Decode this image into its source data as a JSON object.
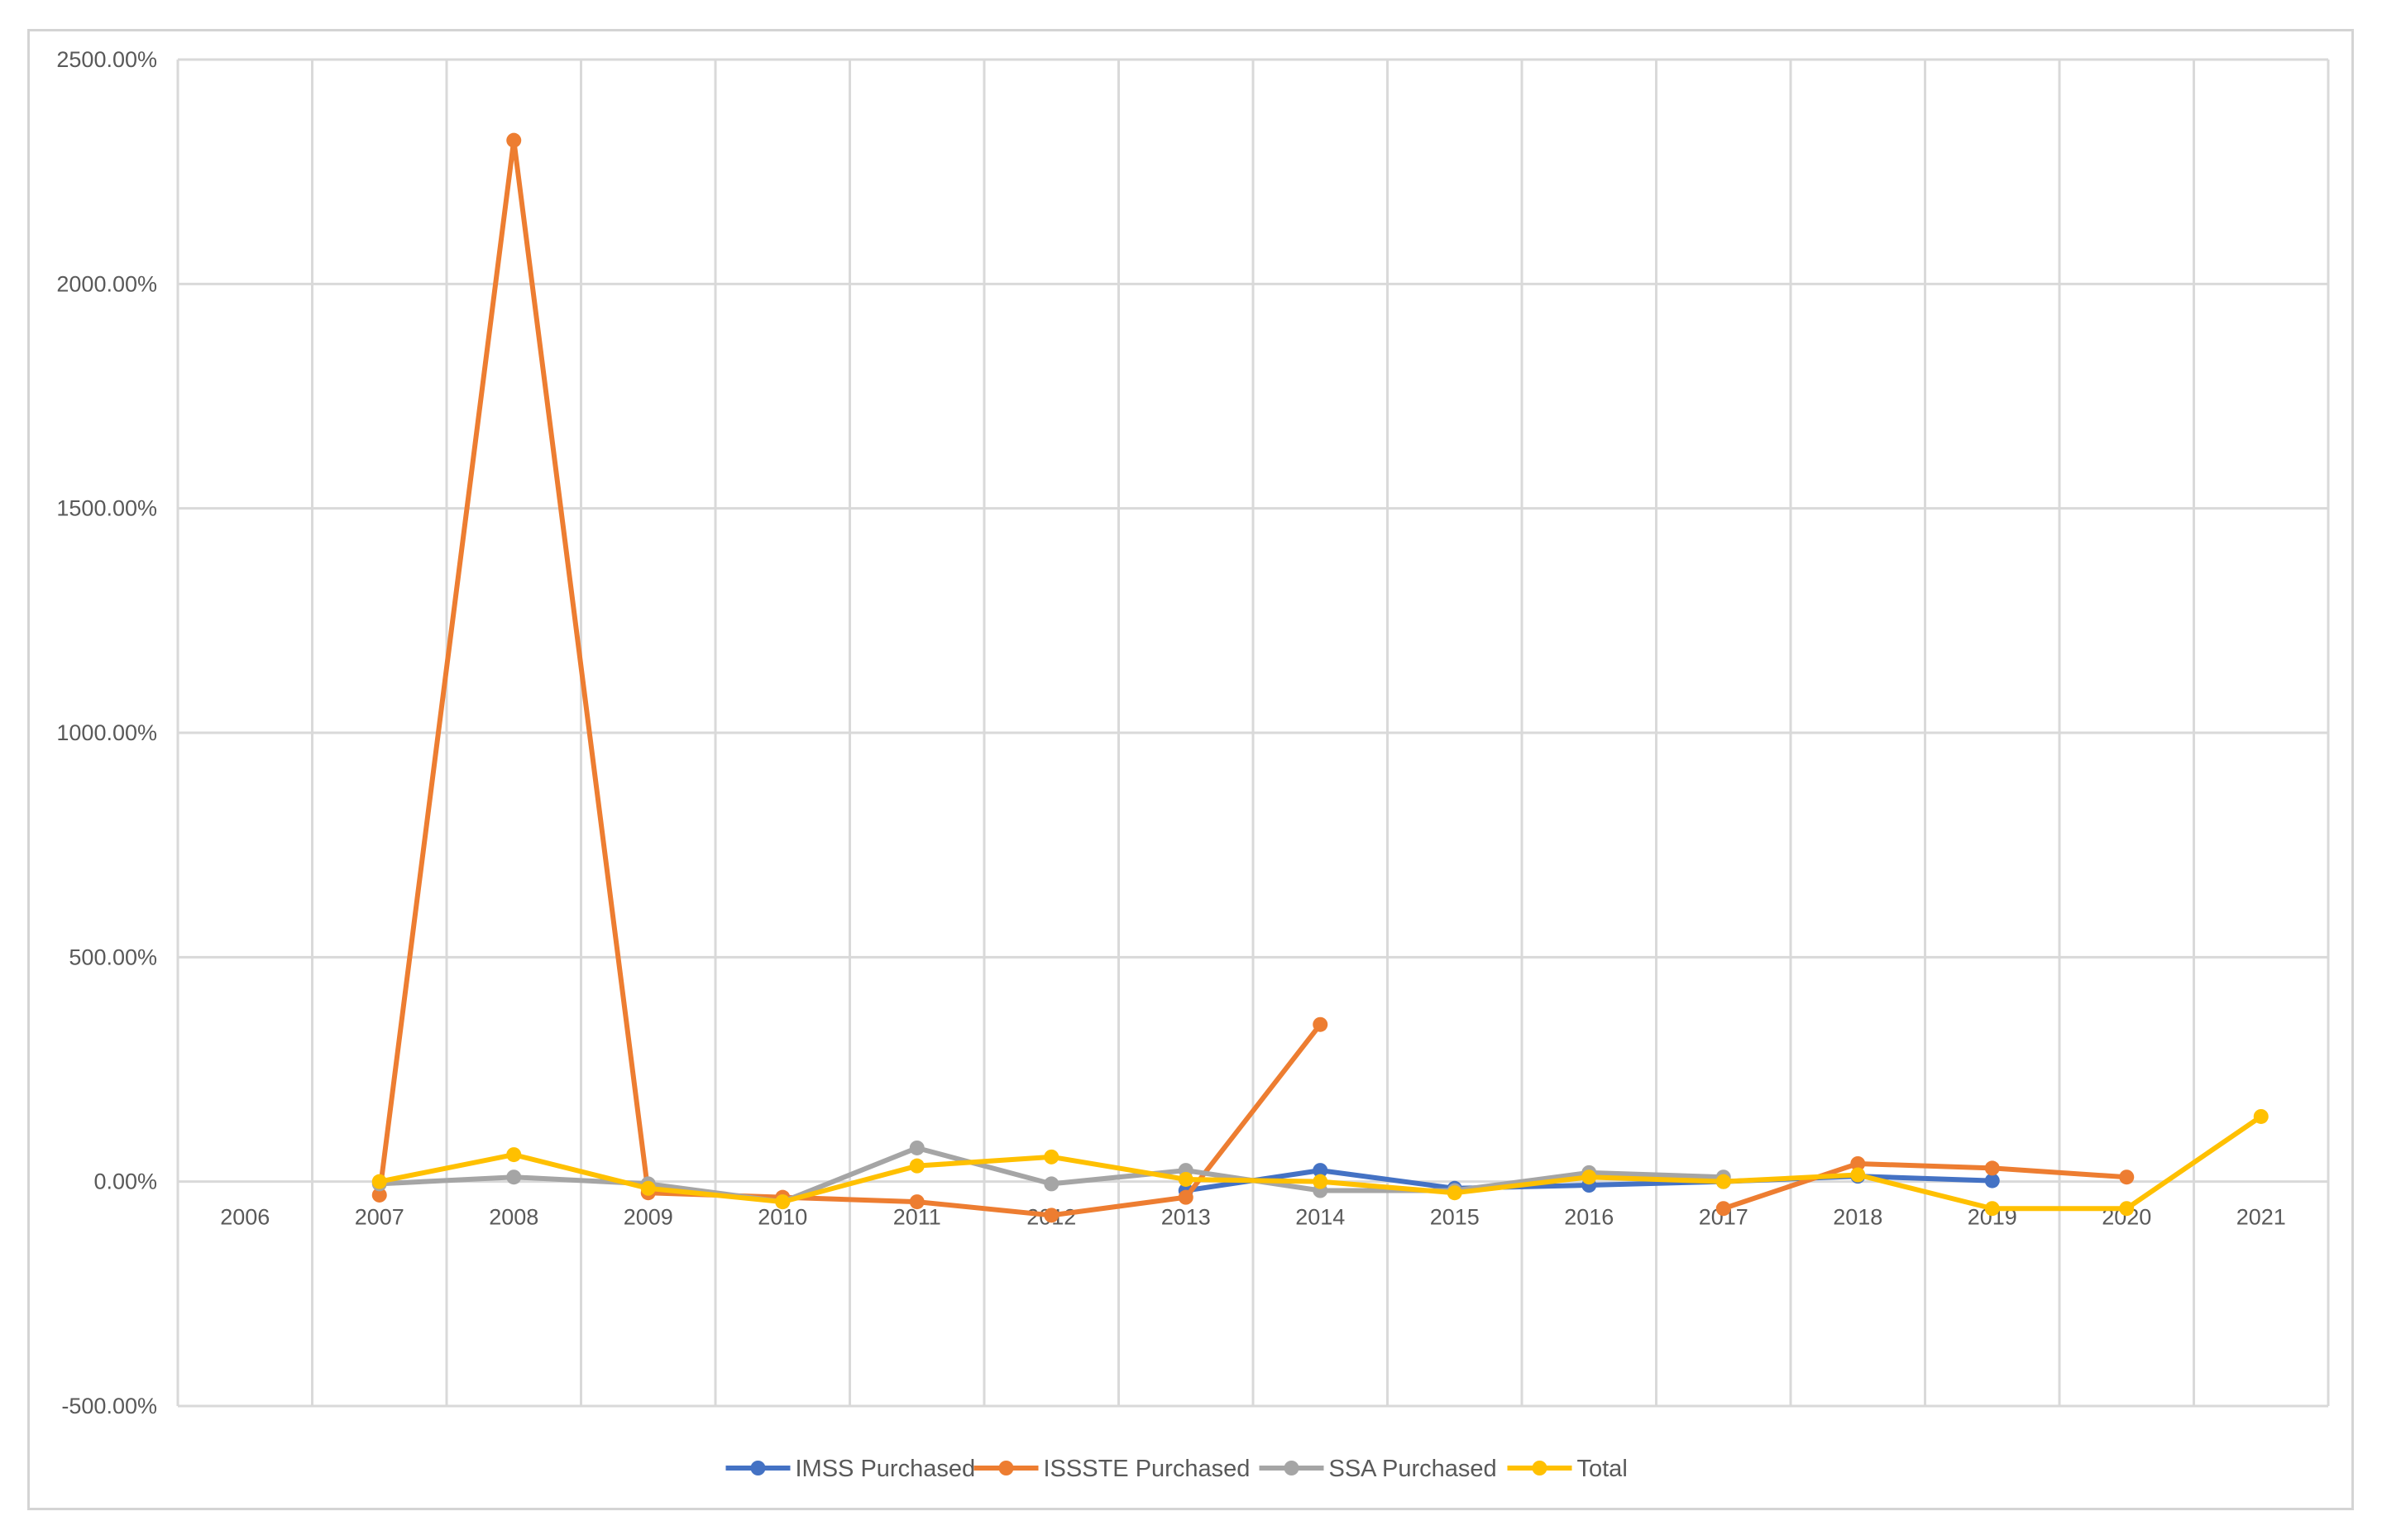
{
  "chart_data": {
    "type": "line",
    "title": "",
    "xlabel": "",
    "ylabel": "",
    "x": [
      "2006",
      "2007",
      "2008",
      "2009",
      "2010",
      "2011",
      "2012",
      "2013",
      "2014",
      "2015",
      "2016",
      "2017",
      "2018",
      "2019",
      "2020",
      "2021"
    ],
    "ylim": [
      -500,
      2500
    ],
    "ytick_labels": [
      "-500.00%",
      "0.00%",
      "500.00%",
      "1000.00%",
      "1500.00%",
      "2000.00%",
      "2500.00%"
    ],
    "ytick_values": [
      -500,
      0,
      500,
      1000,
      1500,
      2000,
      2500
    ],
    "grid": "on",
    "legend_position": "bottom",
    "series": [
      {
        "name": "IMSS Purchased",
        "color": "#4472C4",
        "values": [
          null,
          null,
          null,
          null,
          null,
          null,
          null,
          -20,
          25,
          -15,
          -8,
          0,
          12,
          2,
          null,
          null
        ]
      },
      {
        "name": "ISSSTE Purchased",
        "color": "#ED7D31",
        "values": [
          null,
          -30,
          2320,
          -25,
          -35,
          -45,
          -75,
          -35,
          350,
          null,
          null,
          -60,
          40,
          30,
          10,
          null
        ]
      },
      {
        "name": "SSA Purchased",
        "color": "#A5A5A5",
        "values": [
          null,
          -5,
          10,
          -5,
          -45,
          75,
          -5,
          25,
          -20,
          -20,
          20,
          10,
          null,
          null,
          null,
          null
        ]
      },
      {
        "name": "Total",
        "color": "#FFC000",
        "values": [
          null,
          0,
          60,
          -15,
          -45,
          35,
          55,
          5,
          0,
          -25,
          10,
          0,
          15,
          -60,
          -60,
          145
        ]
      }
    ]
  }
}
